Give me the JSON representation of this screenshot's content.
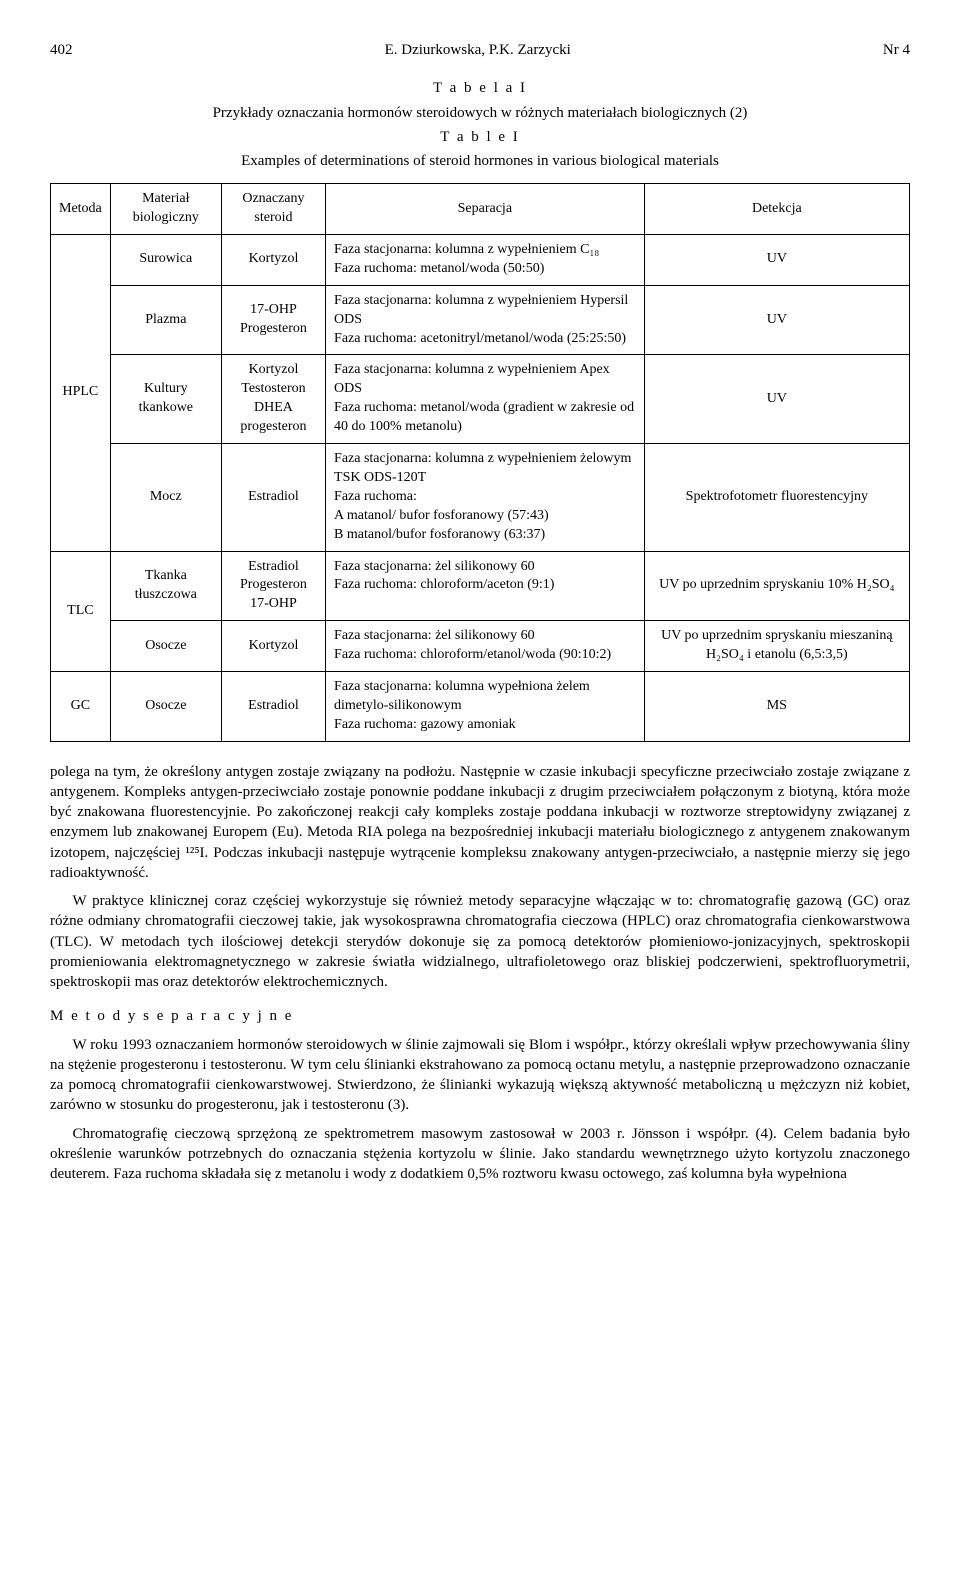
{
  "header": {
    "page_number": "402",
    "authors": "E. Dziurkowska, P.K. Zarzycki",
    "issue": "Nr 4"
  },
  "table": {
    "title_pl": "T a b e l a  I",
    "caption_pl": "Przykłady oznaczania hormonów steroidowych w różnych materiałach biologicznych (2)",
    "title_en": "T a b l e  I",
    "caption_en": "Examples of determinations of steroid hormones in various biological materials",
    "columns": {
      "c0": "Metoda",
      "c1": "Materiał biologiczny",
      "c2": "Oznaczany steroid",
      "c3": "Separacja",
      "c4": "Detekcja"
    },
    "rows": [
      {
        "method": "HPLC",
        "method_rowspan": 4,
        "material": "Surowica",
        "steroid": "Kortyzol",
        "separation": "Faza stacjonarna: kolumna z wypełnieniem C₁₈\nFaza ruchoma: metanol/woda (50:50)",
        "detection": "UV"
      },
      {
        "material": "Plazma",
        "steroid": "17-OHP Progesteron",
        "separation": "Faza stacjonarna: kolumna z wypełnieniem Hypersil ODS\nFaza ruchoma: acetonitryl/metanol/woda (25:25:50)",
        "detection": "UV"
      },
      {
        "material": "Kultury tkankowe",
        "steroid": "Kortyzol Testosteron DHEA progesteron",
        "separation": "Faza stacjonarna: kolumna z wypełnieniem Apex ODS\nFaza ruchoma: metanol/woda (gradient w zakresie od 40 do 100% metanolu)",
        "detection": "UV"
      },
      {
        "material": "Mocz",
        "steroid": "Estradiol",
        "separation": "Faza stacjonarna: kolumna z wypełnieniem żelowym TSK ODS-120T\nFaza ruchoma:\nA matanol/ bufor fosforanowy (57:43)\nB matanol/bufor fosforanowy (63:37)",
        "detection": "Spektrofotometr fluorestencyjny"
      },
      {
        "method": "TLC",
        "method_rowspan": 2,
        "material": "Tkanka tłuszczowa",
        "steroid": "Estradiol Progesteron 17-OHP",
        "separation": "Faza stacjonarna: żel silikonowy 60\nFaza ruchoma: chloroform/aceton (9:1)",
        "detection": "UV po uprzednim spryskaniu 10% H₂SO₄"
      },
      {
        "material": "Osocze",
        "steroid": "Kortyzol",
        "separation": "Faza stacjonarna: żel silikonowy 60\nFaza ruchoma: chloroform/etanol/woda (90:10:2)",
        "detection": "UV po uprzednim spryskaniu mieszaniną H₂SO₄ i etanolu (6,5:3,5)"
      },
      {
        "method": "GC",
        "method_rowspan": 1,
        "material": "Osocze",
        "steroid": "Estradiol",
        "separation": "Faza stacjonarna: kolumna wypełniona żelem dimetylo-silikonowym\nFaza ruchoma: gazowy amoniak",
        "detection": "MS"
      }
    ]
  },
  "paragraphs": {
    "p1": "polega na tym, że określony antygen zostaje związany na podłożu. Następnie w czasie inkubacji specyficzne przeciwciało zostaje związane z antygenem. Kompleks antygen-przeciwciało zostaje ponownie poddane inkubacji z drugim przeciwciałem połączonym z biotyną, która może być znakowana fluorestencyjnie. Po zakończonej reakcji cały kompleks zostaje poddana inkubacji w roztworze streptowidyny związanej z enzymem lub znakowanej Europem (Eu). Metoda RIA polega na bezpośredniej inkubacji materiału biologicznego z antygenem znakowanym izotopem, najczęściej ¹²⁵I. Podczas inkubacji następuje wytrącenie kompleksu znakowany antygen-przeciwciało, a następnie mierzy się jego radioaktywność.",
    "p2": "W praktyce klinicznej coraz częściej wykorzystuje się również metody separacyjne włączając w to: chromatografię gazową (GC) oraz różne odmiany chromatografii cieczowej takie, jak wysokosprawna chromatografia cieczowa (HPLC) oraz chromatografia cienkowarstwowa (TLC). W metodach tych ilościowej detekcji sterydów dokonuje się za pomocą detektorów płomieniowo-jonizacyjnych, spektroskopii promieniowania elektromagnetycznego w zakresie światła widzialnego, ultrafioletowego oraz bliskiej podczerwieni, spektrofluorymetrii, spektroskopii mas oraz detektorów elektrochemicznych.",
    "section_heading": "M e t o d y   s e p a r a c y j n e",
    "p3": "W roku 1993 oznaczaniem hormonów steroidowych w ślinie zajmowali się Blom i współpr., którzy określali wpływ przechowywania śliny na stężenie progesteronu i testosteronu. W tym celu ślinianki ekstrahowano za pomocą octanu metylu, a następnie przeprowadzono oznaczanie za pomocą chromatografii cienkowarstwowej. Stwierdzono, że ślinianki wykazują większą aktywność metaboliczną u mężczyzn niż kobiet, zarówno w stosunku do progesteronu, jak i testosteronu (3).",
    "p4": "Chromatografię cieczową sprzężoną ze spektrometrem masowym zastosował w 2003 r. Jönsson i współpr. (4). Celem badania było określenie warunków potrzebnych do oznaczania stężenia kortyzolu w ślinie. Jako standardu wewnętrznego użyto kortyzolu znaczonego deuterem. Faza ruchoma składała się z metanolu i wody z dodatkiem 0,5% roztworu kwasu octowego, zaś kolumna była wypełniona"
  }
}
